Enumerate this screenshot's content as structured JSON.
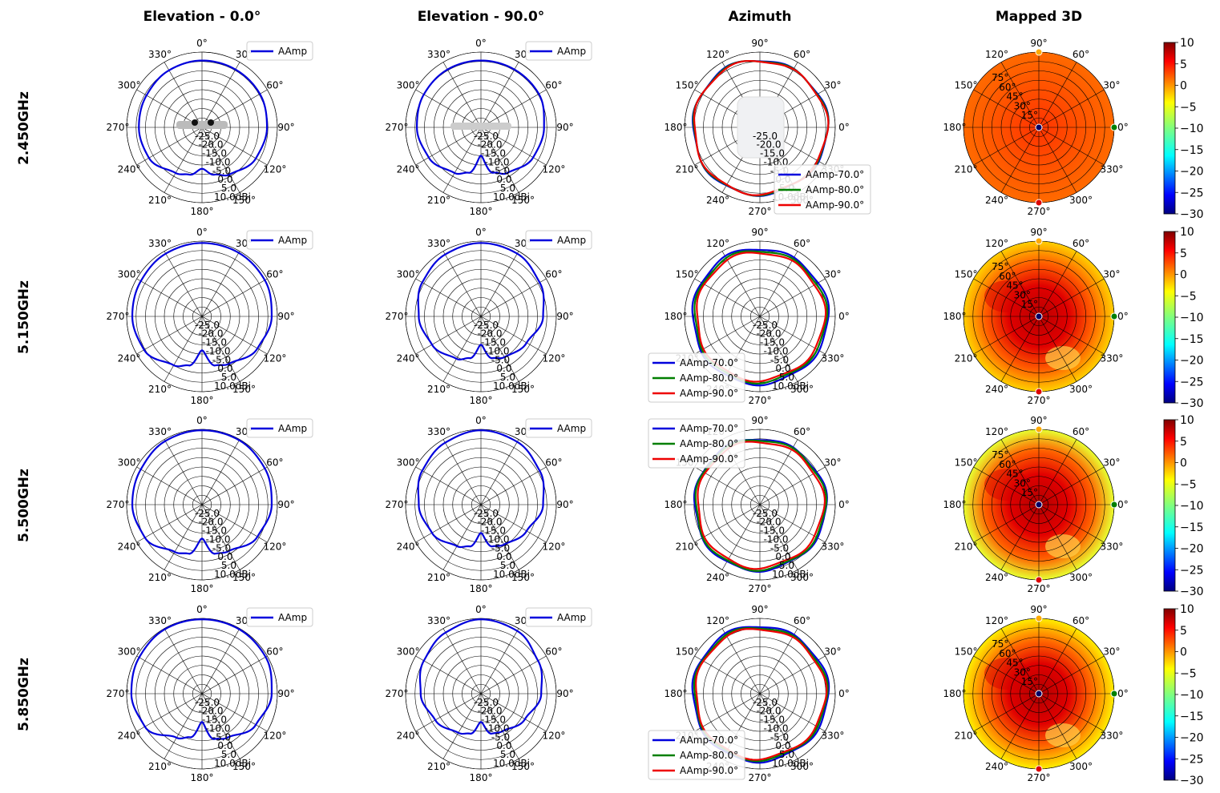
{
  "chart_data": {
    "type": "polar",
    "column_titles": [
      "Elevation - 0.0°",
      "Elevation - 90.0°",
      "Azimuth",
      "Mapped 3D"
    ],
    "row_titles": [
      "2.450GHz",
      "5.150GHz",
      "5.500GHz",
      "5.850GHz"
    ],
    "radial_ticks": [
      "-25.0",
      "-20.0",
      "-15.0",
      "-10.0",
      "-5.0",
      "0.0",
      "5.0",
      "10.0dBi"
    ],
    "rlim": [
      -30,
      10
    ],
    "elevation_angle_labels": [
      "0°",
      "330°",
      "300°",
      "270°",
      "240°",
      "210°",
      "180°",
      "150°",
      "120°",
      "90°",
      "60°",
      "30°"
    ],
    "azimuth_angle_labels": [
      "0°",
      "30°",
      "60°",
      "90°",
      "120°",
      "150°",
      "180°",
      "210°",
      "240°",
      "270°",
      "300°",
      "330°"
    ],
    "mapped_elev_labels": [
      "15°",
      "30°",
      "45°",
      "60°",
      "75°"
    ],
    "elevation_legend": [
      "AAmp"
    ],
    "azimuth_legend": [
      "AAmp-70.0°",
      "AAmp-80.0°",
      "AAmp-90.0°"
    ],
    "series_colors": {
      "elevation": "#0000dd",
      "az70": "#0000dd",
      "az80": "#007f00",
      "az90": "#ee0000"
    },
    "colorbar": {
      "min": -30,
      "max": 10,
      "ticks": [
        "10",
        "5",
        "0",
        "−5",
        "−10",
        "−15",
        "−20",
        "−25",
        "−30"
      ]
    },
    "rows": [
      {
        "frequency": "2.450GHz",
        "elev0_gain_by_angle_deg": {
          "0": 5.5,
          "30": 5.0,
          "60": 4.0,
          "90": 3.5,
          "120": 2.5,
          "150": -2.0,
          "165": -4.0,
          "180": -8.0,
          "195": -4.0,
          "210": -1.0,
          "240": 3.0,
          "270": 4.5,
          "300": 5.5,
          "330": 5.5
        },
        "elev90_gain_by_angle_deg": {
          "0": 5.5,
          "30": 5.5,
          "60": 5.0,
          "90": 4.0,
          "120": 2.0,
          "150": -2.0,
          "165": -5.0,
          "180": -15.0,
          "195": -5.0,
          "210": -2.0,
          "240": 2.0,
          "270": 3.5,
          "300": 5.5,
          "330": 5.5
        },
        "azimuth_gain_dbi": {
          "AAmp-70.0°": 5.8,
          "AAmp-80.0°": 5.6,
          "AAmp-90.0°": 5.4
        },
        "mapped_peak_dbi": 4
      },
      {
        "frequency": "5.150GHz",
        "elev0_gain_by_angle_deg": {
          "0": 9.0,
          "30": 8.5,
          "60": 7.5,
          "90": 7.0,
          "120": 5.5,
          "150": 0.0,
          "165": -3.0,
          "180": -12.0,
          "195": -3.0,
          "210": -1.0,
          "240": 4.0,
          "270": 7.0,
          "300": 8.5,
          "330": 9.0
        },
        "elev90_gain_by_angle_deg": {
          "0": 9.0,
          "30": 8.0,
          "60": 6.0,
          "90": 3.0,
          "120": 0.0,
          "150": -4.0,
          "165": -7.0,
          "180": -15.0,
          "195": -7.0,
          "210": -5.0,
          "240": -2.0,
          "270": 3.0,
          "300": 6.0,
          "330": 8.5
        },
        "azimuth_gain_dbi": {
          "AAmp-70.0°": 6.0,
          "AAmp-80.0°": 5.0,
          "AAmp-90.0°": 4.0
        },
        "mapped_peak_dbi": 9
      },
      {
        "frequency": "5.500GHz",
        "elev0_gain_by_angle_deg": {
          "0": 9.5,
          "30": 9.0,
          "60": 7.5,
          "90": 7.0,
          "120": 5.0,
          "150": -1.0,
          "165": -3.0,
          "180": -12.0,
          "195": -3.0,
          "210": -1.5,
          "240": 4.0,
          "270": 7.0,
          "300": 8.5,
          "330": 9.5
        },
        "elev90_gain_by_angle_deg": {
          "0": 9.5,
          "30": 8.0,
          "60": 6.0,
          "90": 3.0,
          "120": 0.0,
          "150": -4.5,
          "165": -7.0,
          "180": -15.0,
          "195": -7.0,
          "210": -5.5,
          "240": -2.0,
          "270": 3.0,
          "300": 6.0,
          "330": 8.5
        },
        "azimuth_gain_dbi": {
          "AAmp-70.0°": 5.0,
          "AAmp-80.0°": 4.5,
          "AAmp-90.0°": 3.5
        },
        "mapped_peak_dbi": 9
      },
      {
        "frequency": "5.850GHz",
        "elev0_gain_by_angle_deg": {
          "0": 9.5,
          "30": 9.5,
          "60": 8.5,
          "90": 7.5,
          "120": 5.0,
          "150": -3.0,
          "165": -6.0,
          "180": -15.0,
          "195": -5.0,
          "210": -3.0,
          "240": 3.0,
          "270": 7.0,
          "300": 9.0,
          "330": 9.5
        },
        "elev90_gain_by_angle_deg": {
          "0": 9.5,
          "30": 7.5,
          "60": 5.0,
          "90": 2.0,
          "120": -2.0,
          "150": -6.0,
          "165": -8.0,
          "180": -15.0,
          "195": -8.0,
          "210": -7.0,
          "240": -3.0,
          "270": 2.0,
          "300": 5.0,
          "330": 8.5
        },
        "azimuth_gain_dbi": {
          "AAmp-70.0°": 6.0,
          "AAmp-80.0°": 5.2,
          "AAmp-90.0°": 4.5
        },
        "mapped_peak_dbi": 9
      }
    ]
  }
}
